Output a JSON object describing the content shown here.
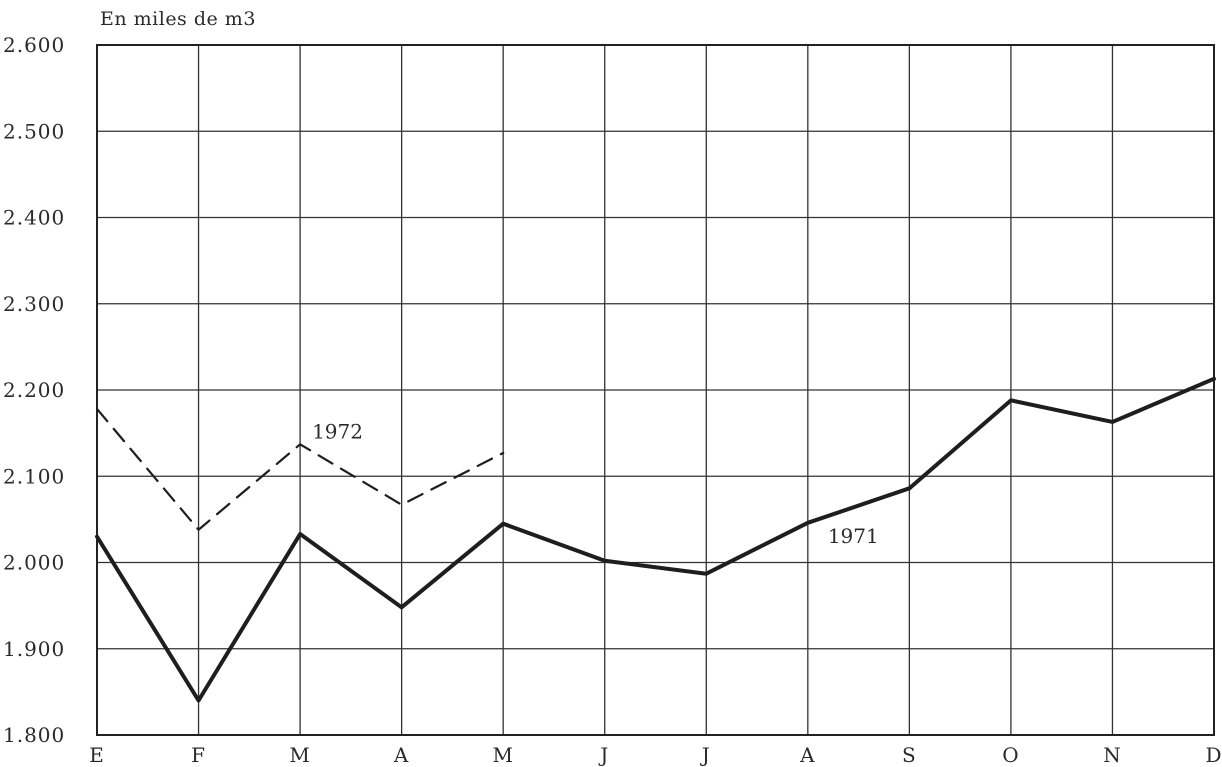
{
  "chart_data": {
    "type": "line",
    "title": "",
    "unit_label": "En miles de m3",
    "xlabel": "",
    "ylabel": "",
    "categories": [
      "E",
      "F",
      "M",
      "A",
      "M",
      "J",
      "J",
      "A",
      "S",
      "O",
      "N",
      "D"
    ],
    "y_ticks": [
      1800,
      1900,
      2000,
      2100,
      2200,
      2300,
      2400,
      2500,
      2600
    ],
    "y_tick_labels": [
      "1.800",
      "1.900",
      "2.000",
      "2.100",
      "2.200",
      "2.300",
      "2.400",
      "2.500",
      "2.600"
    ],
    "ylim": [
      1800,
      2600
    ],
    "grid": true,
    "series": [
      {
        "name": "1971",
        "style": "solid",
        "color": "#1e1e1e",
        "values": [
          2030,
          1840,
          2033,
          1948,
          2045,
          2002,
          1987,
          2046,
          2086,
          2188,
          2163,
          2213
        ]
      },
      {
        "name": "1972",
        "style": "dashed",
        "color": "#1e1e1e",
        "values": [
          2178,
          2038,
          2137,
          2067,
          2127,
          null,
          null,
          null,
          null,
          null,
          null,
          null
        ]
      }
    ]
  }
}
